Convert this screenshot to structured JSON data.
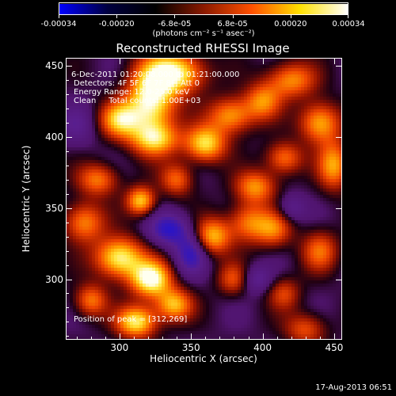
{
  "colorbar": {
    "tick_labels": [
      "-0.00034",
      "-0.00020",
      "-6.8e-05",
      "6.8e-05",
      "0.00020",
      "0.00034"
    ],
    "units": "(photons cm⁻² s⁻¹ asec⁻²)",
    "colors": [
      "#0000ff",
      "#000040",
      "#000000",
      "#8a1a00",
      "#ff5000",
      "#ffe000",
      "#ffffff"
    ]
  },
  "title": "Reconstructed RHESSI Image",
  "annotations": {
    "time_range": "6-Dec-2011 01:20:08.000 to 01:21:00.000",
    "detectors": "Detectors: 4F 5F 6F 7F 8F, Att 0",
    "energy_range": "Energy Range: 12.0-25.0 keV",
    "clean": "Clean     Total counts: 1.00E+03",
    "peak_position": "Position of peak = [312,269]"
  },
  "footer": {
    "date": "17-Aug-2013 06:51"
  },
  "chart_data": {
    "type": "heatmap",
    "title": "Reconstructed RHESSI Image",
    "xlabel": "Heliocentric X (arcsec)",
    "ylabel": "Heliocentric Y (arcsec)",
    "xlim": [
      263,
      455
    ],
    "ylim": [
      258,
      455
    ],
    "x_ticks": [
      300,
      350,
      400,
      450
    ],
    "y_ticks": [
      300,
      350,
      400,
      450
    ],
    "colorbar_range": [
      -0.00034,
      0.00034
    ],
    "grid": false,
    "blobs": [
      {
        "x": 322,
        "y": 425,
        "sx": 12,
        "sy": 18,
        "a": 0.95
      },
      {
        "x": 340,
        "y": 445,
        "sx": 14,
        "sy": 10,
        "a": 0.85
      },
      {
        "x": 300,
        "y": 412,
        "sx": 10,
        "sy": 9,
        "a": 0.7
      },
      {
        "x": 325,
        "y": 398,
        "sx": 12,
        "sy": 8,
        "a": 0.6
      },
      {
        "x": 360,
        "y": 395,
        "sx": 10,
        "sy": 9,
        "a": 0.8
      },
      {
        "x": 378,
        "y": 415,
        "sx": 11,
        "sy": 9,
        "a": 0.65
      },
      {
        "x": 400,
        "y": 425,
        "sx": 9,
        "sy": 9,
        "a": 0.55
      },
      {
        "x": 420,
        "y": 440,
        "sx": 12,
        "sy": 9,
        "a": 0.6
      },
      {
        "x": 440,
        "y": 410,
        "sx": 10,
        "sy": 10,
        "a": 0.7
      },
      {
        "x": 450,
        "y": 380,
        "sx": 8,
        "sy": 12,
        "a": 0.65
      },
      {
        "x": 415,
        "y": 385,
        "sx": 9,
        "sy": 8,
        "a": 0.55
      },
      {
        "x": 395,
        "y": 365,
        "sx": 10,
        "sy": 8,
        "a": 0.6
      },
      {
        "x": 340,
        "y": 370,
        "sx": 8,
        "sy": 8,
        "a": 0.5
      },
      {
        "x": 315,
        "y": 355,
        "sx": 7,
        "sy": 7,
        "a": 0.75
      },
      {
        "x": 285,
        "y": 370,
        "sx": 10,
        "sy": 8,
        "a": 0.55
      },
      {
        "x": 275,
        "y": 340,
        "sx": 10,
        "sy": 10,
        "a": 0.6
      },
      {
        "x": 300,
        "y": 315,
        "sx": 12,
        "sy": 10,
        "a": 0.9
      },
      {
        "x": 322,
        "y": 300,
        "sx": 10,
        "sy": 9,
        "a": 0.95
      },
      {
        "x": 312,
        "y": 270,
        "sx": 10,
        "sy": 8,
        "a": 0.85
      },
      {
        "x": 338,
        "y": 282,
        "sx": 9,
        "sy": 8,
        "a": 0.7
      },
      {
        "x": 365,
        "y": 330,
        "sx": 9,
        "sy": 9,
        "a": 0.7
      },
      {
        "x": 390,
        "y": 340,
        "sx": 10,
        "sy": 10,
        "a": 0.55
      },
      {
        "x": 408,
        "y": 335,
        "sx": 9,
        "sy": 9,
        "a": 0.5
      },
      {
        "x": 380,
        "y": 300,
        "sx": 8,
        "sy": 8,
        "a": 0.45
      },
      {
        "x": 415,
        "y": 290,
        "sx": 8,
        "sy": 8,
        "a": 0.4
      },
      {
        "x": 440,
        "y": 320,
        "sx": 9,
        "sy": 10,
        "a": 0.5
      },
      {
        "x": 430,
        "y": 265,
        "sx": 10,
        "sy": 8,
        "a": 0.45
      },
      {
        "x": 280,
        "y": 285,
        "sx": 8,
        "sy": 8,
        "a": 0.55
      },
      {
        "x": 335,
        "y": 335,
        "sx": 10,
        "sy": 8,
        "a": -0.55
      },
      {
        "x": 350,
        "y": 318,
        "sx": 8,
        "sy": 10,
        "a": -0.5
      },
      {
        "x": 395,
        "y": 300,
        "sx": 8,
        "sy": 7,
        "a": -0.35
      },
      {
        "x": 420,
        "y": 350,
        "sx": 7,
        "sy": 7,
        "a": -0.3
      },
      {
        "x": 270,
        "y": 408,
        "sx": 10,
        "sy": 10,
        "a": -0.25
      }
    ]
  }
}
